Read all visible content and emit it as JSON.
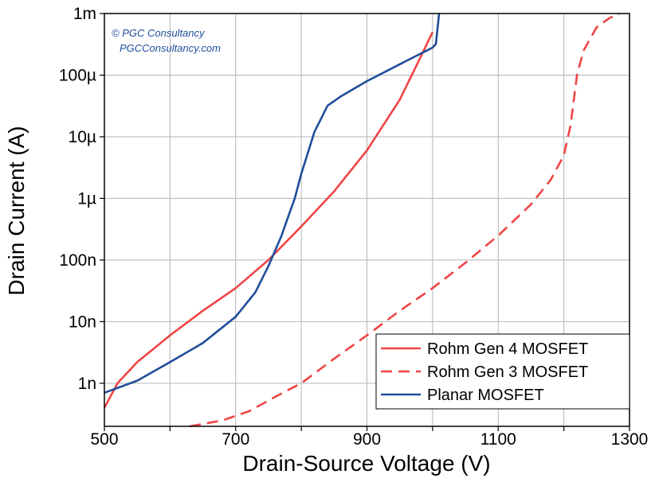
{
  "chart_data": {
    "type": "line",
    "xlabel": "Drain-Source Voltage (V)",
    "ylabel": "Drain Current (A)",
    "xlim": [
      500,
      1300
    ],
    "ylim": [
      2e-10,
      0.001
    ],
    "yscale": "log",
    "grid": true,
    "legend_position": "bottom-right",
    "x_ticks": [
      {
        "value": 500,
        "label": "500"
      },
      {
        "value": 700,
        "label": "700"
      },
      {
        "value": 900,
        "label": "900"
      },
      {
        "value": 1100,
        "label": "1100"
      },
      {
        "value": 1300,
        "label": "1300"
      }
    ],
    "y_ticks": [
      {
        "value": 1e-09,
        "label": "1n"
      },
      {
        "value": 1e-08,
        "label": "10n"
      },
      {
        "value": 1e-07,
        "label": "100n"
      },
      {
        "value": 1e-06,
        "label": "1µ"
      },
      {
        "value": 1e-05,
        "label": "10µ"
      },
      {
        "value": 0.0001,
        "label": "100µ"
      },
      {
        "value": 0.001,
        "label": "1m"
      }
    ],
    "series": [
      {
        "name": "Rohm Gen 4 MOSFET",
        "color": "#ef4444",
        "dash": "solid",
        "x": [
          500,
          520,
          550,
          600,
          650,
          700,
          750,
          800,
          850,
          900,
          950,
          980,
          1000
        ],
        "y": [
          4e-10,
          1e-09,
          2.2e-09,
          6e-09,
          1.5e-08,
          3.5e-08,
          1e-07,
          3.5e-07,
          1.3e-06,
          6e-06,
          4e-05,
          0.00018,
          0.0005
        ]
      },
      {
        "name": "Rohm Gen 3 MOSFET",
        "color": "#ef4444",
        "dash": "dashed",
        "x": [
          630,
          680,
          720,
          760,
          800,
          850,
          900,
          950,
          1000,
          1050,
          1100,
          1150,
          1180,
          1200,
          1210,
          1220,
          1230,
          1250,
          1270,
          1285
        ],
        "y": [
          2e-10,
          2.5e-10,
          3.5e-10,
          6e-10,
          1e-09,
          2.5e-09,
          6e-09,
          1.5e-08,
          3.5e-08,
          9e-08,
          2.5e-07,
          8e-07,
          2e-06,
          5e-06,
          1.5e-05,
          0.0001,
          0.00025,
          0.0006,
          0.00085,
          0.001
        ]
      },
      {
        "name": "Planar MOSFET",
        "color": "#1f4e9a",
        "dash": "solid",
        "x": [
          500,
          550,
          600,
          650,
          700,
          730,
          750,
          770,
          780,
          790,
          800,
          820,
          840,
          860,
          900,
          950,
          1000,
          1005,
          1010
        ],
        "y": [
          7e-10,
          1.1e-09,
          2.2e-09,
          4.5e-09,
          1.2e-08,
          3e-08,
          8e-08,
          2.5e-07,
          5e-07,
          1e-06,
          2.5e-06,
          1.2e-05,
          3.2e-05,
          4.5e-05,
          8e-05,
          0.00015,
          0.00028,
          0.00032,
          0.001
        ]
      }
    ]
  },
  "watermark": {
    "line1": "© PGC Consultancy",
    "line2": "PGCConsultancy.com"
  }
}
